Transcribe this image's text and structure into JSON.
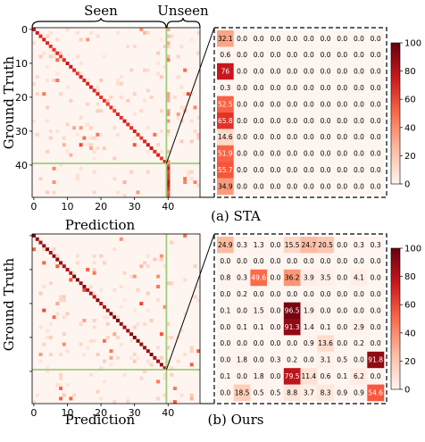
{
  "figure": {
    "seen_label": "Seen",
    "unseen_label": "Unseen",
    "ylabel": "Ground Truth",
    "xlabel": "Prediction"
  },
  "chart_data": [
    {
      "type": "heatmap",
      "panel": "overview",
      "caption": "(a) STA",
      "xlabel": "Prediction",
      "ylabel": "Ground Truth",
      "x_ticks": [
        "0",
        "10",
        "20",
        "30",
        "40"
      ],
      "y_ticks": [
        "0",
        "10",
        "20",
        "30",
        "40"
      ],
      "seen_label": "Seen",
      "unseen_label": "Unseen",
      "num_classes": 50,
      "seen_classes": 40
    },
    {
      "type": "heatmap",
      "panel": "zoom",
      "caption": "(a) STA",
      "description_rows": "unseen ground-truth classes",
      "values": [
        [
          32.1,
          0.0,
          0.0,
          0.0,
          0.0,
          0.0,
          0.0,
          0.0,
          0.0,
          0.0
        ],
        [
          0.6,
          0.0,
          0.0,
          0.0,
          0.0,
          0.0,
          0.0,
          0.0,
          0.0,
          0.0
        ],
        [
          76,
          0.0,
          0.0,
          0.0,
          0.0,
          0.0,
          0.0,
          0.0,
          0.0,
          0.0
        ],
        [
          0.3,
          0.0,
          0.0,
          0.0,
          0.0,
          0.0,
          0.0,
          0.0,
          0.0,
          0.0
        ],
        [
          52.5,
          0.0,
          0.0,
          0.0,
          0.0,
          0.0,
          0.0,
          0.0,
          0.0,
          0.0
        ],
        [
          65.8,
          0.0,
          0.0,
          0.0,
          0.0,
          0.0,
          0.0,
          0.0,
          0.0,
          0.0
        ],
        [
          14.6,
          0.0,
          0.0,
          0.0,
          0.0,
          0.0,
          0.0,
          0.0,
          0.0,
          0.0
        ],
        [
          51.9,
          0.0,
          0.0,
          0.0,
          0.0,
          0.0,
          0.0,
          0.0,
          0.0,
          0.0
        ],
        [
          55.7,
          0.0,
          0.0,
          0.0,
          0.0,
          0.0,
          0.0,
          0.0,
          0.0,
          0.0
        ],
        [
          34.9,
          0.0,
          0.0,
          0.0,
          0.0,
          0.0,
          0.0,
          0.0,
          0.0,
          0.0
        ]
      ],
      "colorbar": {
        "min": 0,
        "max": 100,
        "ticks": [
          "0",
          "20",
          "40",
          "60",
          "80",
          "100"
        ]
      }
    },
    {
      "type": "heatmap",
      "panel": "overview",
      "caption": "(b) Ours",
      "xlabel": "Prediction",
      "ylabel": "Ground Truth",
      "x_ticks": [
        "0",
        "10",
        "20",
        "30",
        "40"
      ],
      "num_classes": 50,
      "seen_classes": 40
    },
    {
      "type": "heatmap",
      "panel": "zoom",
      "caption": "(b) Ours",
      "values": [
        [
          24.9,
          0.3,
          1.3,
          0.0,
          15.5,
          24.7,
          20.5,
          0.0,
          0.3,
          0.3
        ],
        [
          0.0,
          0.0,
          0.0,
          0.0,
          0.0,
          0.0,
          0.0,
          0.0,
          0.0,
          0.0
        ],
        [
          0.8,
          0.3,
          49.6,
          0.0,
          36.2,
          3.9,
          3.5,
          0.0,
          4.1,
          0.0
        ],
        [
          0.0,
          0.2,
          0.0,
          0.0,
          0.0,
          0.0,
          0.0,
          0.0,
          0.0,
          0.0
        ],
        [
          0.1,
          0.0,
          1.5,
          0.0,
          96.5,
          1.9,
          0.0,
          0.0,
          0.0,
          0.0
        ],
        [
          0.0,
          0.1,
          0.1,
          0.0,
          91.3,
          1.4,
          0.1,
          0.0,
          2.9,
          0.0
        ],
        [
          0.0,
          0.0,
          0.0,
          0.0,
          0.0,
          0.9,
          13.6,
          0.0,
          0.2,
          0.0
        ],
        [
          0.0,
          1.8,
          0.0,
          0.3,
          0.2,
          0.0,
          3.1,
          0.5,
          0.0,
          91.8
        ],
        [
          0.1,
          0.0,
          1.8,
          0.0,
          79.5,
          11.4,
          0.6,
          0.1,
          6.2,
          0.0
        ],
        [
          0.0,
          18.5,
          0.5,
          0.5,
          8.8,
          3.7,
          8.3,
          0.9,
          0.9,
          54.6
        ]
      ],
      "colorbar": {
        "min": 0,
        "max": 100,
        "ticks": [
          "0",
          "20",
          "40",
          "60",
          "80",
          "100"
        ]
      }
    }
  ]
}
